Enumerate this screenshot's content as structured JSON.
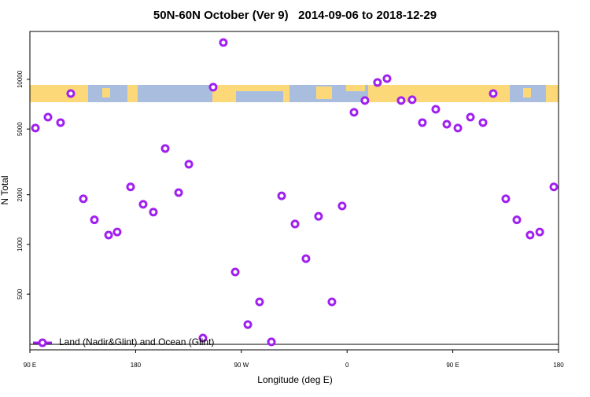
{
  "chart_data": {
    "type": "scatter",
    "title": "50N-60N October (Ver 9)   2014-09-06 to 2018-12-29",
    "xlabel": "Longitude (deg E)",
    "ylabel": "N Total",
    "log_y": true,
    "legend": "bottom-left",
    "xlim": [
      90,
      540
    ],
    "ylim": [
      230,
      19500
    ],
    "xticks": [
      {
        "value": 90,
        "label": "90 E"
      },
      {
        "value": 180,
        "label": "180"
      },
      {
        "value": 270,
        "label": "90 W"
      },
      {
        "value": 360,
        "label": "0"
      },
      {
        "value": 450,
        "label": "90 E"
      },
      {
        "value": 540,
        "label": "180"
      }
    ],
    "yticks": [
      500,
      1000,
      2000,
      5000,
      10000
    ],
    "series": [
      {
        "name": "Land (Nadir&Glint) and Ocean (Glint)",
        "color": "#a020f0",
        "x": [
          94.7,
          105.4,
          116.1,
          124.8,
          135.5,
          144.9,
          157,
          164.3,
          175.7,
          186.4,
          195.1,
          205.2,
          216.6,
          225.3,
          237.3,
          246,
          254.7,
          264.8,
          275.5,
          285.5,
          295.6,
          304.3,
          315.7,
          325,
          335.7,
          347.1,
          355.8,
          365.9,
          375.2,
          385.9,
          394,
          406,
          415.4,
          424.1,
          435.5,
          444.9,
          454.3,
          465,
          475.7,
          484.4,
          495.1,
          504.5,
          515.8,
          524,
          536
        ],
        "values": [
          5070,
          5900,
          5470,
          8200,
          1890,
          1410,
          1140,
          1190,
          2230,
          1750,
          1570,
          3810,
          2060,
          3060,
          271,
          8960,
          16700,
          681,
          327,
          449,
          257,
          1970,
          1330,
          820,
          1480,
          449,
          1710,
          6310,
          7440,
          9570,
          10100,
          7440,
          7520,
          5470,
          6590,
          5350,
          5070,
          5900,
          5470,
          8200,
          1890,
          1410,
          1140,
          1190,
          2230
        ]
      }
    ]
  }
}
